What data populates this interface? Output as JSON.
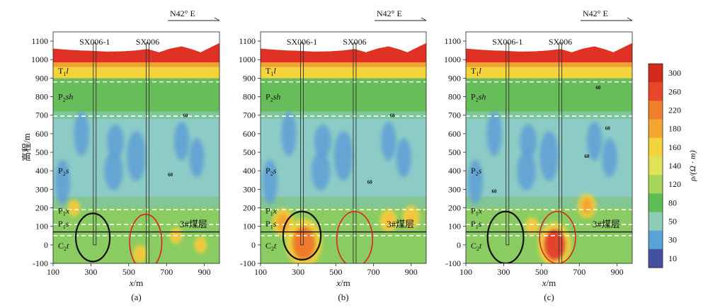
{
  "chart_data": {
    "type": "heatmap",
    "panels": [
      {
        "label": "(a)",
        "xlim": [
          100,
          980
        ],
        "ylim": [
          -100,
          1150
        ],
        "highlight_circles": [
          {
            "color": "#111111",
            "cx": 310,
            "cy": 40,
            "rx": 90,
            "ry": 130
          },
          {
            "color": "#e02020",
            "cx": 590,
            "cy": 15,
            "rx": 85,
            "ry": 150
          }
        ],
        "anomalies": [
          {
            "x": 210,
            "y": 200,
            "r": 20,
            "color": "#f5c23a"
          },
          {
            "x": 560,
            "y": -50,
            "r": 22,
            "color": "#f5c23a"
          },
          {
            "x": 750,
            "y": 50,
            "r": 20,
            "color": "#f5c23a"
          },
          {
            "x": 880,
            "y": 0,
            "r": 20,
            "color": "#f5c23a"
          }
        ],
        "contour_labels": [
          {
            "x": 800,
            "y": 690,
            "text": "60"
          },
          {
            "x": 720,
            "y": 370,
            "text": "60"
          }
        ]
      },
      {
        "label": "(b)",
        "xlim": [
          100,
          980
        ],
        "ylim": [
          -100,
          1150
        ],
        "highlight_circles": [
          {
            "color": "#111111",
            "cx": 320,
            "cy": 50,
            "rx": 100,
            "ry": 130
          },
          {
            "color": "#e02020",
            "cx": 600,
            "cy": 30,
            "rx": 95,
            "ry": 150
          }
        ],
        "anomalies": [
          {
            "x": 330,
            "y": 10,
            "r": 60,
            "color": "#ee7a2a"
          },
          {
            "x": 220,
            "y": 120,
            "r": 35,
            "color": "#f5a632"
          },
          {
            "x": 780,
            "y": 130,
            "r": 28,
            "color": "#f5c23a"
          },
          {
            "x": 900,
            "y": 150,
            "r": 28,
            "color": "#f5c23a"
          }
        ],
        "contour_labels": [
          {
            "x": 800,
            "y": 690,
            "text": "60"
          },
          {
            "x": 680,
            "y": 330,
            "text": "60"
          }
        ]
      },
      {
        "label": "(c)",
        "xlim": [
          100,
          980
        ],
        "ylim": [
          -100,
          1150
        ],
        "highlight_circles": [
          {
            "color": "#111111",
            "cx": 310,
            "cy": 40,
            "rx": 95,
            "ry": 140
          },
          {
            "color": "#e02020",
            "cx": 585,
            "cy": 40,
            "rx": 95,
            "ry": 140
          }
        ],
        "anomalies": [
          {
            "x": 570,
            "y": 0,
            "r": 55,
            "color": "#e2432d"
          },
          {
            "x": 740,
            "y": 210,
            "r": 30,
            "color": "#f5a632"
          },
          {
            "x": 450,
            "y": 100,
            "r": 22,
            "color": "#f5c23a"
          }
        ],
        "contour_labels": [
          {
            "x": 800,
            "y": 840,
            "text": "60"
          },
          {
            "x": 850,
            "y": 620,
            "text": "60"
          },
          {
            "x": 740,
            "y": 470,
            "text": "60"
          },
          {
            "x": 250,
            "y": 280,
            "text": "60"
          }
        ]
      }
    ],
    "wells": [
      {
        "name": "SX006-1",
        "x": 320,
        "bottom": 0
      },
      {
        "name": "SX006",
        "x": 600,
        "bottom": -100
      }
    ],
    "topography": [
      [
        100,
        1060
      ],
      [
        160,
        1055
      ],
      [
        240,
        1050
      ],
      [
        300,
        1048
      ],
      [
        380,
        1044
      ],
      [
        460,
        1045
      ],
      [
        540,
        1050
      ],
      [
        600,
        1058
      ],
      [
        660,
        1040
      ],
      [
        720,
        1060
      ],
      [
        780,
        1072
      ],
      [
        840,
        1055
      ],
      [
        880,
        1040
      ],
      [
        940,
        1070
      ],
      [
        980,
        1090
      ]
    ],
    "layer_boundaries": [
      {
        "y": 880,
        "style": "dashed"
      },
      {
        "y": 695,
        "style": "dashed"
      },
      {
        "y": 190,
        "style": "dashed"
      },
      {
        "y": 110,
        "style": "dashed"
      },
      {
        "y": 70,
        "style": "solid"
      },
      {
        "y": 50,
        "style": "dashed"
      }
    ],
    "layer_labels": [
      {
        "y": 940,
        "main": "T",
        "sub": "1",
        "ital": "l",
        "tail": ""
      },
      {
        "y": 800,
        "main": "P",
        "sub": "2",
        "ital": "sh",
        "tail": ""
      },
      {
        "y": 400,
        "main": "P",
        "sub": "2",
        "ital": "s",
        "tail": ""
      },
      {
        "y": 185,
        "main": "P",
        "sub": "1",
        "ital": "x",
        "tail": ""
      },
      {
        "y": 115,
        "main": "P",
        "sub": "1",
        "ital": "s",
        "tail": ""
      },
      {
        "y": -5,
        "main": "C",
        "sub": "2",
        "ital": "t",
        "tail": ""
      }
    ],
    "coal_seam_label": "3#煤层",
    "coal_seam_x": 770,
    "coal_seam_y": 95,
    "direction_label": "N42° E",
    "xlabel_ital": "x",
    "xlabel_unit": "/m",
    "ylabel": "高程/m",
    "x_ticks": [
      100,
      300,
      500,
      700,
      900
    ],
    "y_ticks": [
      -100,
      0,
      100,
      200,
      300,
      400,
      500,
      600,
      700,
      800,
      900,
      1000,
      1100
    ],
    "colorbar": {
      "label": "ρ/(Ω · m)",
      "ticks": [
        "300",
        "260",
        "220",
        "180",
        "160",
        "140",
        "120",
        "80",
        "50",
        "30",
        "10"
      ],
      "colors": [
        "#d42a1e",
        "#e8462a",
        "#f07f2b",
        "#f5a632",
        "#f5d33a",
        "#dfe35a",
        "#a8d65a",
        "#5dbe55",
        "#8dcbb5",
        "#5aa2d8",
        "#4450a0"
      ]
    },
    "resistivity_zones": {
      "T1l_red": "#df3224",
      "transition": "#f0a030",
      "P2sh_green": "#67bd5a",
      "P2s_cyan": "#8dccc6",
      "low_blue": "#5f9fd6",
      "deep_green": "#8acc62",
      "yellow": "#f5d33a"
    }
  }
}
